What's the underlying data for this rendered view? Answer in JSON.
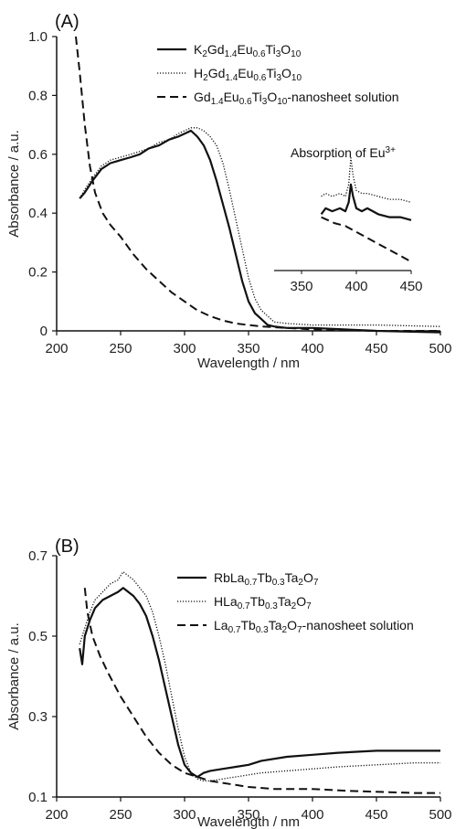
{
  "chart_data": [
    {
      "type": "line",
      "panel_label": "(A)",
      "xlabel": "Wavelength / nm",
      "ylabel": "Absorbance / a.u.",
      "xlim": [
        200,
        500
      ],
      "ylim": [
        0,
        1.0
      ],
      "xticks": [
        "200",
        "250",
        "300",
        "350",
        "400",
        "450",
        "500"
      ],
      "yticks": [
        "0",
        "0.2",
        "0.4",
        "0.6",
        "0.8",
        "1.0"
      ],
      "legend_position": "top-right",
      "series": [
        {
          "name": "K2Gd1.4Eu0.6Ti3O10",
          "label_parts": [
            [
              "K",
              ""
            ],
            [
              "2",
              "sub"
            ],
            [
              "Gd",
              ""
            ],
            [
              "1.4",
              "sub"
            ],
            [
              "Eu",
              ""
            ],
            [
              "0.6",
              "sub"
            ],
            [
              "Ti",
              ""
            ],
            [
              "3",
              "sub"
            ],
            [
              "O",
              ""
            ],
            [
              "10",
              "sub"
            ]
          ],
          "style": "solid",
          "x": [
            218,
            222,
            228,
            235,
            242,
            250,
            258,
            265,
            272,
            280,
            288,
            295,
            300,
            305,
            310,
            315,
            320,
            325,
            330,
            335,
            340,
            345,
            350,
            355,
            360,
            365,
            370,
            380,
            400,
            450,
            500
          ],
          "y": [
            0.45,
            0.47,
            0.51,
            0.55,
            0.57,
            0.58,
            0.59,
            0.6,
            0.62,
            0.63,
            0.65,
            0.66,
            0.67,
            0.68,
            0.66,
            0.63,
            0.58,
            0.51,
            0.43,
            0.35,
            0.26,
            0.17,
            0.1,
            0.06,
            0.04,
            0.02,
            0.015,
            0.01,
            0.01,
            0.0,
            -0.005
          ]
        },
        {
          "name": "H2Gd1.4Eu0.6Ti3O10",
          "label_parts": [
            [
              "H",
              ""
            ],
            [
              "2",
              "sub"
            ],
            [
              "Gd",
              ""
            ],
            [
              "1.4",
              "sub"
            ],
            [
              "Eu",
              ""
            ],
            [
              "0.6",
              "sub"
            ],
            [
              "Ti",
              ""
            ],
            [
              "3",
              "sub"
            ],
            [
              "O",
              ""
            ],
            [
              "10",
              "sub"
            ]
          ],
          "style": "dotted",
          "x": [
            218,
            222,
            228,
            235,
            242,
            250,
            258,
            265,
            272,
            280,
            288,
            295,
            300,
            305,
            310,
            315,
            320,
            325,
            330,
            335,
            340,
            345,
            350,
            355,
            360,
            365,
            370,
            380,
            400,
            450,
            500
          ],
          "y": [
            0.45,
            0.48,
            0.52,
            0.56,
            0.58,
            0.59,
            0.6,
            0.61,
            0.62,
            0.64,
            0.65,
            0.67,
            0.68,
            0.69,
            0.69,
            0.68,
            0.66,
            0.63,
            0.57,
            0.48,
            0.38,
            0.28,
            0.18,
            0.11,
            0.07,
            0.05,
            0.03,
            0.025,
            0.02,
            0.02,
            0.015
          ]
        },
        {
          "name": "Gd1.4Eu0.6Ti3O10-nanosheet solution",
          "label_parts": [
            [
              "Gd",
              ""
            ],
            [
              "1.4",
              "sub"
            ],
            [
              "Eu",
              ""
            ],
            [
              "0.6",
              "sub"
            ],
            [
              "Ti",
              ""
            ],
            [
              "3",
              "sub"
            ],
            [
              "O",
              ""
            ],
            [
              "10",
              "sub"
            ],
            [
              "-nanosheet solution",
              ""
            ]
          ],
          "style": "dashed",
          "x": [
            215,
            218,
            222,
            226,
            230,
            236,
            242,
            250,
            260,
            270,
            280,
            290,
            300,
            310,
            320,
            330,
            340,
            350,
            360,
            380,
            400,
            450,
            500
          ],
          "y": [
            1.0,
            0.88,
            0.7,
            0.56,
            0.47,
            0.4,
            0.36,
            0.32,
            0.26,
            0.21,
            0.17,
            0.13,
            0.1,
            0.07,
            0.05,
            0.035,
            0.025,
            0.02,
            0.015,
            0.01,
            0.005,
            0.0,
            0.0
          ]
        }
      ],
      "inset": {
        "title_parts": [
          [
            "Absorption of Eu",
            ""
          ],
          [
            "3+",
            "sup"
          ]
        ],
        "xlim": [
          350,
          450
        ],
        "xticks": [
          "350",
          "400",
          "450"
        ],
        "series": [
          {
            "style": "solid",
            "x": [
              368,
              372,
              378,
              385,
              390,
              393,
              395,
              397,
              400,
              405,
              410,
              420,
              430,
              440,
              450
            ],
            "y": [
              0.34,
              0.36,
              0.35,
              0.36,
              0.35,
              0.38,
              0.44,
              0.4,
              0.36,
              0.35,
              0.36,
              0.34,
              0.33,
              0.33,
              0.32
            ]
          },
          {
            "style": "dotted",
            "x": [
              368,
              372,
              378,
              385,
              390,
              393,
              395,
              397,
              400,
              405,
              410,
              420,
              430,
              440,
              450
            ],
            "y": [
              0.4,
              0.41,
              0.4,
              0.41,
              0.4,
              0.44,
              0.53,
              0.47,
              0.42,
              0.41,
              0.41,
              0.4,
              0.39,
              0.39,
              0.38
            ]
          },
          {
            "style": "dashed",
            "x": [
              368,
              380,
              390,
              400,
              410,
              420,
              430,
              440,
              450
            ],
            "y": [
              0.33,
              0.31,
              0.3,
              0.28,
              0.26,
              0.24,
              0.22,
              0.2,
              0.18
            ]
          }
        ]
      }
    },
    {
      "type": "line",
      "panel_label": "(B)",
      "xlabel": "Wavelength / nm",
      "ylabel": "Absorbance / a.u.",
      "xlim": [
        200,
        500
      ],
      "ylim": [
        0.1,
        0.7
      ],
      "xticks": [
        "200",
        "250",
        "300",
        "350",
        "400",
        "450",
        "500"
      ],
      "yticks": [
        "0.1",
        "0.3",
        "0.5",
        "0.7"
      ],
      "legend_position": "top-right",
      "series": [
        {
          "name": "RbLa0.7Tb0.3Ta2O7",
          "label_parts": [
            [
              "RbLa",
              ""
            ],
            [
              "0.7",
              "sub"
            ],
            [
              "Tb",
              ""
            ],
            [
              "0.3",
              "sub"
            ],
            [
              "Ta",
              ""
            ],
            [
              "2",
              "sub"
            ],
            [
              "O",
              ""
            ],
            [
              "7",
              "sub"
            ]
          ],
          "style": "solid",
          "x": [
            218,
            220,
            222,
            226,
            230,
            236,
            242,
            248,
            252,
            256,
            260,
            265,
            270,
            275,
            280,
            285,
            290,
            295,
            300,
            305,
            310,
            315,
            320,
            330,
            340,
            350,
            360,
            380,
            400,
            420,
            450,
            480,
            500
          ],
          "y": [
            0.47,
            0.43,
            0.5,
            0.54,
            0.57,
            0.59,
            0.6,
            0.61,
            0.62,
            0.61,
            0.6,
            0.58,
            0.55,
            0.5,
            0.44,
            0.37,
            0.3,
            0.23,
            0.18,
            0.16,
            0.15,
            0.16,
            0.165,
            0.17,
            0.175,
            0.18,
            0.19,
            0.2,
            0.205,
            0.21,
            0.215,
            0.215,
            0.215
          ]
        },
        {
          "name": "HLa0.7Tb0.3Ta2O7",
          "label_parts": [
            [
              "HLa",
              ""
            ],
            [
              "0.7",
              "sub"
            ],
            [
              "Tb",
              ""
            ],
            [
              "0.3",
              "sub"
            ],
            [
              "Ta",
              ""
            ],
            [
              "2",
              "sub"
            ],
            [
              "O",
              ""
            ],
            [
              "7",
              "sub"
            ]
          ],
          "style": "dotted",
          "x": [
            218,
            222,
            226,
            230,
            236,
            242,
            248,
            252,
            256,
            260,
            265,
            270,
            275,
            280,
            285,
            290,
            295,
            300,
            305,
            310,
            315,
            320,
            330,
            340,
            350,
            360,
            380,
            400,
            420,
            450,
            480,
            500
          ],
          "y": [
            0.48,
            0.52,
            0.56,
            0.59,
            0.61,
            0.63,
            0.64,
            0.66,
            0.65,
            0.64,
            0.62,
            0.6,
            0.56,
            0.5,
            0.43,
            0.35,
            0.27,
            0.2,
            0.16,
            0.145,
            0.14,
            0.14,
            0.145,
            0.15,
            0.155,
            0.16,
            0.165,
            0.17,
            0.175,
            0.18,
            0.185,
            0.185
          ]
        },
        {
          "name": "La0.7Tb0.3Ta2O7-nanosheet solution",
          "label_parts": [
            [
              "La",
              ""
            ],
            [
              "0.7",
              "sub"
            ],
            [
              "Tb",
              ""
            ],
            [
              "0.3",
              "sub"
            ],
            [
              "Ta",
              ""
            ],
            [
              "2",
              "sub"
            ],
            [
              "O",
              ""
            ],
            [
              "7",
              "sub"
            ],
            [
              "-nanosheet solution",
              ""
            ]
          ],
          "style": "dashed",
          "x": [
            222,
            224,
            228,
            234,
            240,
            250,
            260,
            270,
            280,
            290,
            300,
            310,
            320,
            330,
            340,
            350,
            370,
            400,
            430,
            460,
            480,
            500
          ],
          "y": [
            0.62,
            0.56,
            0.5,
            0.45,
            0.41,
            0.35,
            0.3,
            0.25,
            0.21,
            0.18,
            0.16,
            0.15,
            0.14,
            0.135,
            0.13,
            0.125,
            0.12,
            0.12,
            0.115,
            0.112,
            0.11,
            0.11
          ]
        }
      ]
    }
  ]
}
